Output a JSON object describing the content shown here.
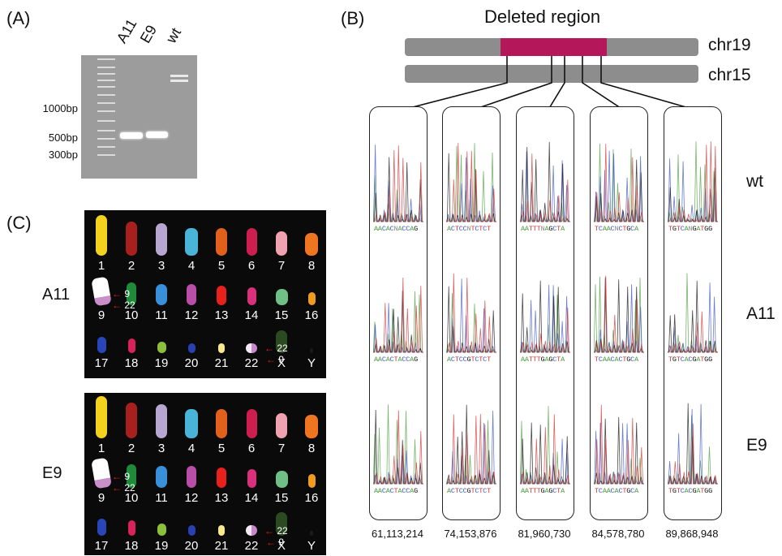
{
  "panels": {
    "a": "(A)",
    "b": "(B)",
    "c": "(C)"
  },
  "gel": {
    "lanes": [
      "A11",
      "E9",
      "wt"
    ],
    "markers": [
      "1000bp",
      "500bp",
      "300bp"
    ]
  },
  "schematic": {
    "title": "Deleted region",
    "chromosomes": [
      "chr19",
      "chr15"
    ],
    "colors": {
      "deleted": "#b5185a",
      "chromosome": "#8d8d8d"
    }
  },
  "sequencing": {
    "rows": [
      "wt",
      "A11",
      "E9"
    ],
    "columns": [
      {
        "coord": "61,113,214",
        "seqs": [
          "AACACNACCAG",
          "AACACTACCAG",
          "AACACTACCAG"
        ]
      },
      {
        "coord": "74,153,876",
        "seqs": [
          "ACTCCNTCTCT",
          "ACTCCGTCTCT",
          "ACTCCGTCTCT"
        ]
      },
      {
        "coord": "81,960,730",
        "seqs": [
          "AATTTNAGCTA",
          "AATTTGAGCTA",
          "AATTTGAGCTA"
        ]
      },
      {
        "coord": "84,578,780",
        "seqs": [
          "TCAACNCTGCA",
          "TCAACACTGCA",
          "TCAACACTGCA"
        ]
      },
      {
        "coord": "89,868,948",
        "seqs": [
          "TGTCANGATGG",
          "TGTCACGATGG",
          "TGTCACGATGG"
        ]
      }
    ]
  },
  "karyotypes": [
    {
      "clone": "A11",
      "row1": [
        "1",
        "2",
        "3",
        "4",
        "5",
        "6",
        "7",
        "8"
      ],
      "row2": [
        "9",
        "10",
        "11",
        "12",
        "13",
        "14",
        "15",
        "16"
      ],
      "row3": [
        "17",
        "18",
        "19",
        "20",
        "21",
        "22",
        "X",
        "Y"
      ],
      "arrows": [
        "9",
        "22",
        "22",
        "9"
      ]
    },
    {
      "clone": "E9",
      "row1": [
        "1",
        "2",
        "3",
        "4",
        "5",
        "6",
        "7",
        "8"
      ],
      "row2": [
        "9",
        "10",
        "11",
        "12",
        "13",
        "14",
        "15",
        "16"
      ],
      "row3": [
        "17",
        "18",
        "19",
        "20",
        "21",
        "22",
        "X",
        "Y"
      ],
      "arrows": [
        "9",
        "22",
        "22",
        "9"
      ]
    }
  ]
}
